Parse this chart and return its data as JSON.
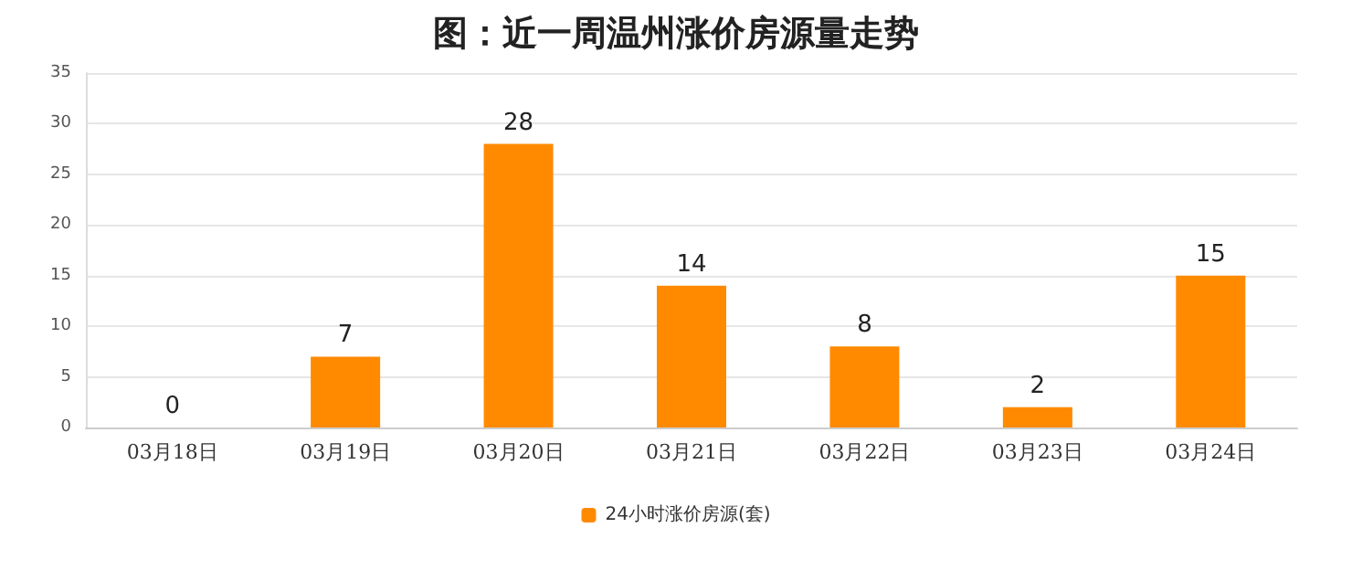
{
  "chart_data": {
    "type": "bar",
    "title": "图：近一周温州涨价房源量走势",
    "categories": [
      "03月18日",
      "03月19日",
      "03月20日",
      "03月21日",
      "03月22日",
      "03月23日",
      "03月24日"
    ],
    "series": [
      {
        "name": "24小时涨价房源(套)",
        "color": "#ff8a00",
        "values": [
          0,
          7,
          28,
          14,
          8,
          2,
          15
        ]
      }
    ],
    "ylim": [
      0,
      35
    ],
    "yticks": [
      0,
      5,
      10,
      15,
      20,
      25,
      30,
      35
    ],
    "grid": "y",
    "legend": "bottom",
    "data_labels": true
  }
}
